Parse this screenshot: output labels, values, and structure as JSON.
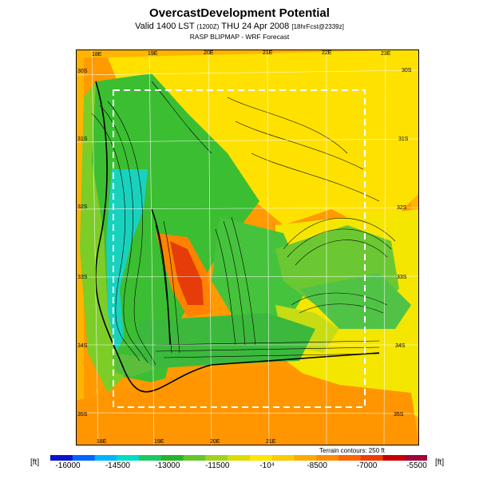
{
  "header": {
    "title": "OvercastDevelopment Potential",
    "valid_main": "Valid 1400 LST",
    "valid_small": "(1200Z)",
    "valid_date": "THU 24 Apr 2008",
    "valid_fcst": "[18hrFcst@2339z]",
    "source": "RASP BLIPMAP - WRF Forecast"
  },
  "axes": {
    "top_lon": [
      "18E",
      "19E",
      "20E",
      "21E",
      "22E",
      "23E"
    ],
    "bottom_lon": [
      "18E",
      "19E",
      "20E",
      "21E"
    ],
    "left_lat": [
      "30S",
      "31S",
      "32S",
      "33S",
      "34S",
      "35S"
    ],
    "right_lat": [
      "30S",
      "31S",
      "32S",
      "33S",
      "34S",
      "35S"
    ]
  },
  "contour_note": "Terrain contours: 250 ft",
  "legend": {
    "unit_left": "[ft]",
    "unit_right": "[ft]",
    "labels": [
      "-16000",
      "-14500",
      "-13000",
      "-11500",
      "-10⁴",
      "-8500",
      "-7000",
      "-5500"
    ],
    "colors": [
      "#0a14c8",
      "#0064ff",
      "#00b4ff",
      "#00dcc8",
      "#1ec864",
      "#28b428",
      "#64c828",
      "#a0d21e",
      "#dcdc00",
      "#ffe600",
      "#ffc800",
      "#ffaa00",
      "#ff8c00",
      "#ff6400",
      "#f03c00",
      "#c80000",
      "#a0003c"
    ]
  },
  "colors": {
    "background": "#ffffff",
    "map_base": "#ff9a00"
  }
}
